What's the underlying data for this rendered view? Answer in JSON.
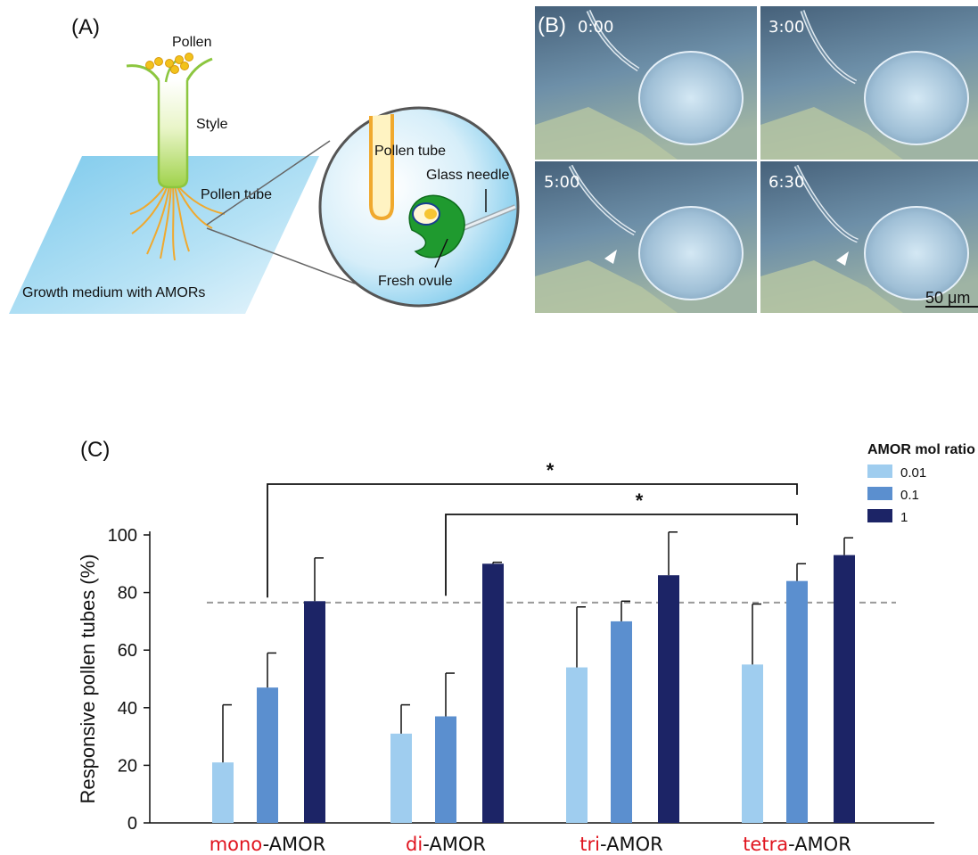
{
  "panel_a": {
    "label": "(A)",
    "labels": {
      "pollen": "Pollen",
      "style": "Style",
      "pollen_tube": "Pollen tube",
      "growth_medium": "Growth medium with AMORs",
      "pollen_tube_zoom": "Pollen tube",
      "glass_needle": "Glass needle",
      "fresh_ovule": "Fresh ovule"
    }
  },
  "panel_b": {
    "label": "(B)",
    "timepoints": [
      "0:00",
      "3:00",
      "5:00",
      "6:30"
    ],
    "scale_bar": "50 μm"
  },
  "panel_c": {
    "label": "(C)",
    "legend_title": "AMOR mol ratio",
    "significance_marker": "*",
    "colors": {
      "0.01": "#9fcdef",
      "0.1": "#5b8fcf",
      "1": "#1c2466",
      "prefix": "#e0141e"
    },
    "category_parts": [
      {
        "prefix": "mono",
        "suffix": "-AMOR"
      },
      {
        "prefix": "di",
        "suffix": "-AMOR"
      },
      {
        "prefix": "tri",
        "suffix": "-AMOR"
      },
      {
        "prefix": "tetra",
        "suffix": "-AMOR"
      }
    ]
  },
  "chart_data": {
    "type": "bar",
    "categories": [
      "mono-AMOR",
      "di-AMOR",
      "tri-AMOR",
      "tetra-AMOR"
    ],
    "series": [
      {
        "name": "0.01",
        "values": [
          21,
          31,
          54,
          55
        ],
        "errors": [
          20,
          10,
          21,
          21
        ]
      },
      {
        "name": "0.1",
        "values": [
          47,
          37,
          70,
          84
        ],
        "errors": [
          12,
          15,
          7,
          6
        ]
      },
      {
        "name": "1",
        "values": [
          77,
          90,
          86,
          93
        ],
        "errors": [
          15,
          0.5,
          15,
          6
        ]
      }
    ],
    "ylabel": "Responsive pollen tubes (%)",
    "ylim": [
      0,
      100
    ],
    "yticks": [
      0,
      20,
      40,
      60,
      80,
      100
    ],
    "reference_line": 76.5,
    "legend_position": "top-right",
    "grid": false,
    "significance": [
      {
        "from": "mono-AMOR",
        "to": "tetra-AMOR",
        "marker": "*"
      },
      {
        "from": "di-AMOR",
        "to": "tetra-AMOR",
        "marker": "*"
      }
    ]
  }
}
